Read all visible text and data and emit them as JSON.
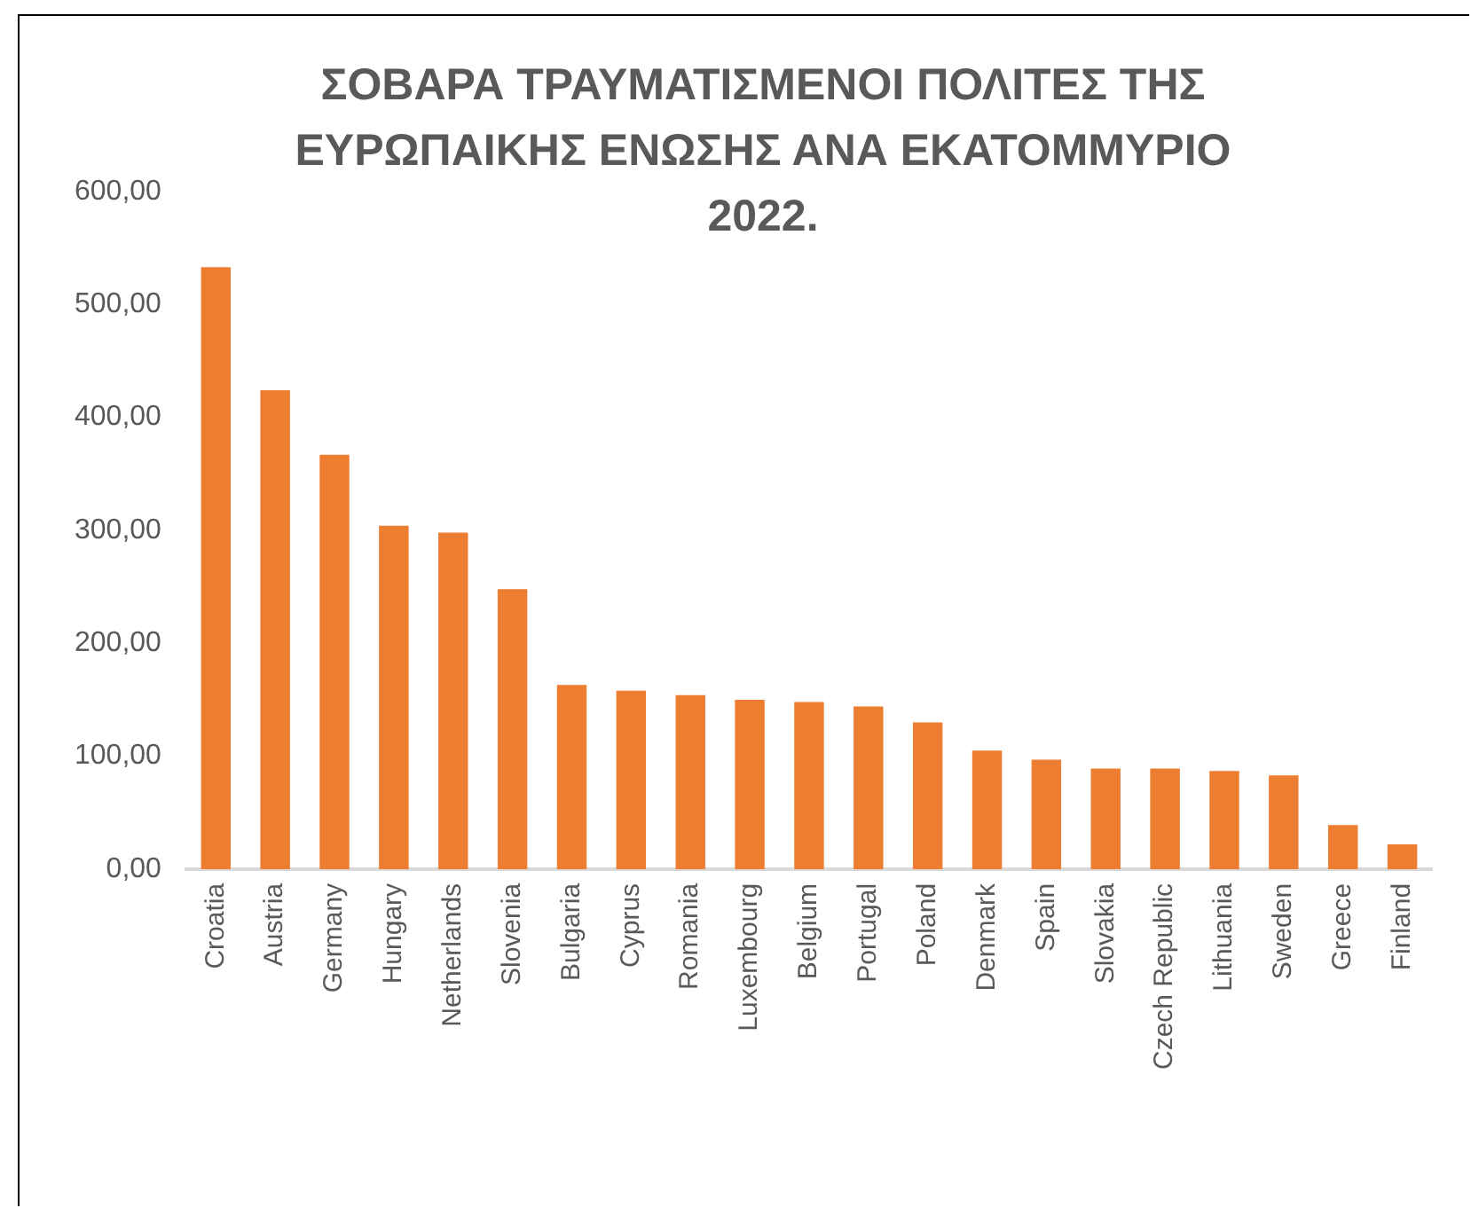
{
  "chart_data": {
    "type": "bar",
    "title": "ΣΟΒΑΡΑ ΤΡΑΥΜΑΤΙΣΜΕΝΟΙ ΠΟΛΙΤΕΣ ΤΗΣ\nΕΥΡΩΠΑΙΚΗΣ ΕΝΩΣΗΣ ΑΝΑ ΕΚΑΤΟΜΜΥΡΙΟ\n2022.",
    "categories": [
      "Croatia",
      "Austria",
      "Germany",
      "Hungary",
      "Netherlands",
      "Slovenia",
      "Bulgaria",
      "Cyprus",
      "Romania",
      "Luxembourg",
      "Belgium",
      "Portugal",
      "Poland",
      "Denmark",
      "Spain",
      "Slovakia",
      "Czech Republic",
      "Lithuania",
      "Sweden",
      "Greece",
      "Finland"
    ],
    "values": [
      533,
      424,
      367,
      304,
      298,
      248,
      163,
      158,
      154,
      150,
      148,
      144,
      130,
      105,
      97,
      89,
      89,
      87,
      83,
      39,
      22
    ],
    "color": "#ed7d31",
    "ylim": [
      0,
      600
    ],
    "yticks": [
      {
        "value": 0,
        "label": "0,00"
      },
      {
        "value": 100,
        "label": "100,00"
      },
      {
        "value": 200,
        "label": "200,00"
      },
      {
        "value": 300,
        "label": "300,00"
      },
      {
        "value": 400,
        "label": "400,00"
      },
      {
        "value": 500,
        "label": "500,00"
      },
      {
        "value": 600,
        "label": "600,00"
      }
    ],
    "grid": false,
    "legend": false
  }
}
